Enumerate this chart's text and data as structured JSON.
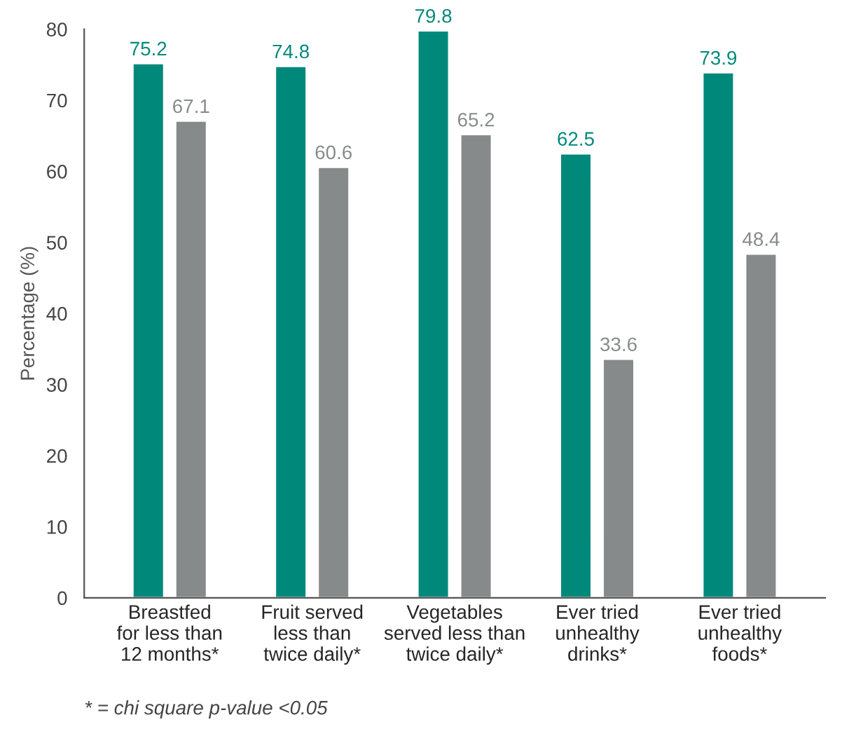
{
  "chart_data": {
    "type": "bar",
    "ylabel": "Percentage (%)",
    "categories": [
      "Breastfed\nfor less than\n12 months*",
      "Fruit served\nless than\ntwice daily*",
      "Vegetables\nserved less than\ntwice daily*",
      "Ever tried\nunhealthy\ndrinks*",
      "Ever tried\nunhealthy\nfoods*"
    ],
    "series": [
      {
        "color": "#00897b",
        "values": [
          75.2,
          74.8,
          79.8,
          62.5,
          73.9
        ]
      },
      {
        "color": "#878a8a",
        "values": [
          67.1,
          60.6,
          65.2,
          33.6,
          48.4
        ]
      }
    ],
    "ylim": [
      0,
      80
    ],
    "yticks": [
      0,
      10,
      20,
      30,
      40,
      50,
      60,
      70,
      80
    ],
    "data_labels": true,
    "grid": false,
    "annotations": [
      "* = chi square p-value <0.05"
    ]
  }
}
